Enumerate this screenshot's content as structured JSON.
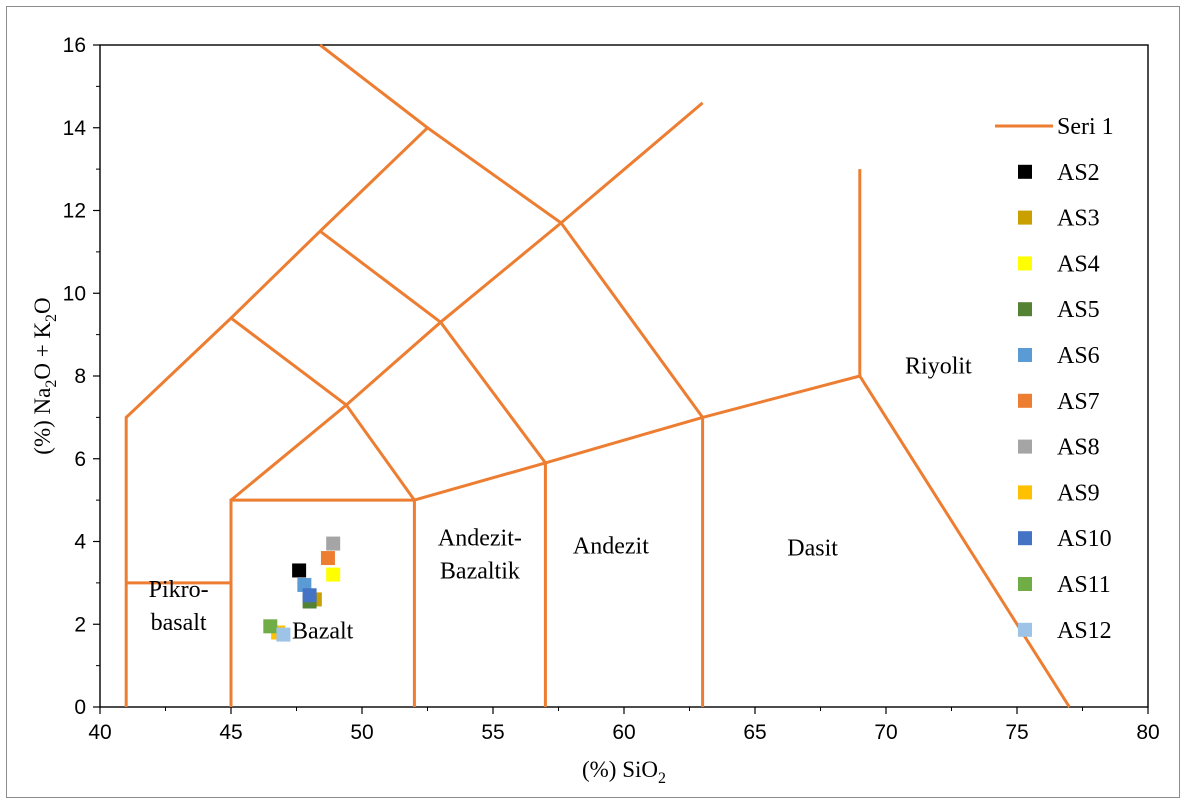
{
  "chart_data": {
    "type": "scatter",
    "title": "",
    "xlabel": "(%) SiO",
    "xlabel_sub": "2",
    "ylabel_parts": [
      "(%) Na",
      "2",
      "O + K",
      "2",
      "O"
    ],
    "xlim": [
      40,
      80
    ],
    "ylim": [
      0,
      16
    ],
    "x_ticks": [
      "40",
      "45",
      "50",
      "55",
      "60",
      "65",
      "70",
      "75",
      "80"
    ],
    "y_ticks": [
      "0",
      "2",
      "4",
      "6",
      "8",
      "10",
      "12",
      "14",
      "16"
    ],
    "grid": false,
    "legend_position": "right",
    "line_series": {
      "name": "Seri 1",
      "color": "#ED7D31",
      "segments": [
        [
          [
            41,
            0
          ],
          [
            41,
            7
          ],
          [
            45,
            9.4
          ],
          [
            48.4,
            11.5
          ],
          [
            52.5,
            14
          ],
          [
            48.4,
            16
          ]
        ],
        [
          [
            41,
            3
          ],
          [
            45,
            3
          ]
        ],
        [
          [
            45,
            0
          ],
          [
            45,
            5
          ],
          [
            52,
            5
          ],
          [
            52,
            0
          ]
        ],
        [
          [
            45,
            5
          ],
          [
            49.4,
            7.3
          ],
          [
            53,
            9.3
          ],
          [
            57.6,
            11.7
          ],
          [
            63,
            14.6
          ]
        ],
        [
          [
            45,
            9.4
          ],
          [
            49.4,
            7.3
          ],
          [
            52,
            5
          ]
        ],
        [
          [
            48.4,
            11.5
          ],
          [
            53,
            9.3
          ],
          [
            57,
            5.9
          ],
          [
            57,
            0
          ]
        ],
        [
          [
            52.5,
            14
          ],
          [
            57.6,
            11.7
          ],
          [
            63,
            7
          ],
          [
            63,
            0
          ]
        ],
        [
          [
            52,
            5
          ],
          [
            57,
            5.9
          ],
          [
            63,
            7
          ],
          [
            69,
            8
          ],
          [
            77,
            0
          ]
        ],
        [
          [
            69,
            8
          ],
          [
            69,
            13
          ]
        ]
      ]
    },
    "series": [
      {
        "name": "AS2",
        "color": "#000000",
        "points": [
          [
            47.6,
            3.3
          ]
        ]
      },
      {
        "name": "AS3",
        "color": "#C9A000",
        "points": [
          [
            48.2,
            2.6
          ]
        ]
      },
      {
        "name": "AS4",
        "color": "#FFFF00",
        "points": [
          [
            48.9,
            3.2
          ]
        ]
      },
      {
        "name": "AS5",
        "color": "#548235",
        "points": [
          [
            48.0,
            2.55
          ]
        ]
      },
      {
        "name": "AS6",
        "color": "#5B9BD5",
        "points": [
          [
            47.8,
            2.95
          ]
        ]
      },
      {
        "name": "AS7",
        "color": "#ED7D31",
        "points": [
          [
            48.7,
            3.6
          ]
        ]
      },
      {
        "name": "AS8",
        "color": "#A5A5A5",
        "points": [
          [
            48.9,
            3.95
          ]
        ]
      },
      {
        "name": "AS9",
        "color": "#FFC000",
        "points": [
          [
            46.8,
            1.8
          ]
        ]
      },
      {
        "name": "AS10",
        "color": "#4472C4",
        "points": [
          [
            48.0,
            2.7
          ]
        ]
      },
      {
        "name": "AS11",
        "color": "#70AD47",
        "points": [
          [
            46.5,
            1.95
          ]
        ]
      },
      {
        "name": "AS12",
        "color": "#9DC3E6",
        "points": [
          [
            47.0,
            1.75
          ]
        ]
      }
    ],
    "annotations": [
      {
        "text": [
          "Pikro-",
          "basalt"
        ],
        "x": 43.0,
        "y": 2.05
      },
      {
        "text": [
          "Bazalt"
        ],
        "x": 48.5,
        "y": 1.85
      },
      {
        "text": [
          "Andezit-",
          "Bazaltik"
        ],
        "x": 54.5,
        "y": 3.3
      },
      {
        "text": [
          "Andezit"
        ],
        "x": 59.5,
        "y": 3.9
      },
      {
        "text": [
          "Dasit"
        ],
        "x": 67.2,
        "y": 3.85
      },
      {
        "text": [
          "Riyolit"
        ],
        "x": 72.0,
        "y": 8.25
      }
    ]
  }
}
